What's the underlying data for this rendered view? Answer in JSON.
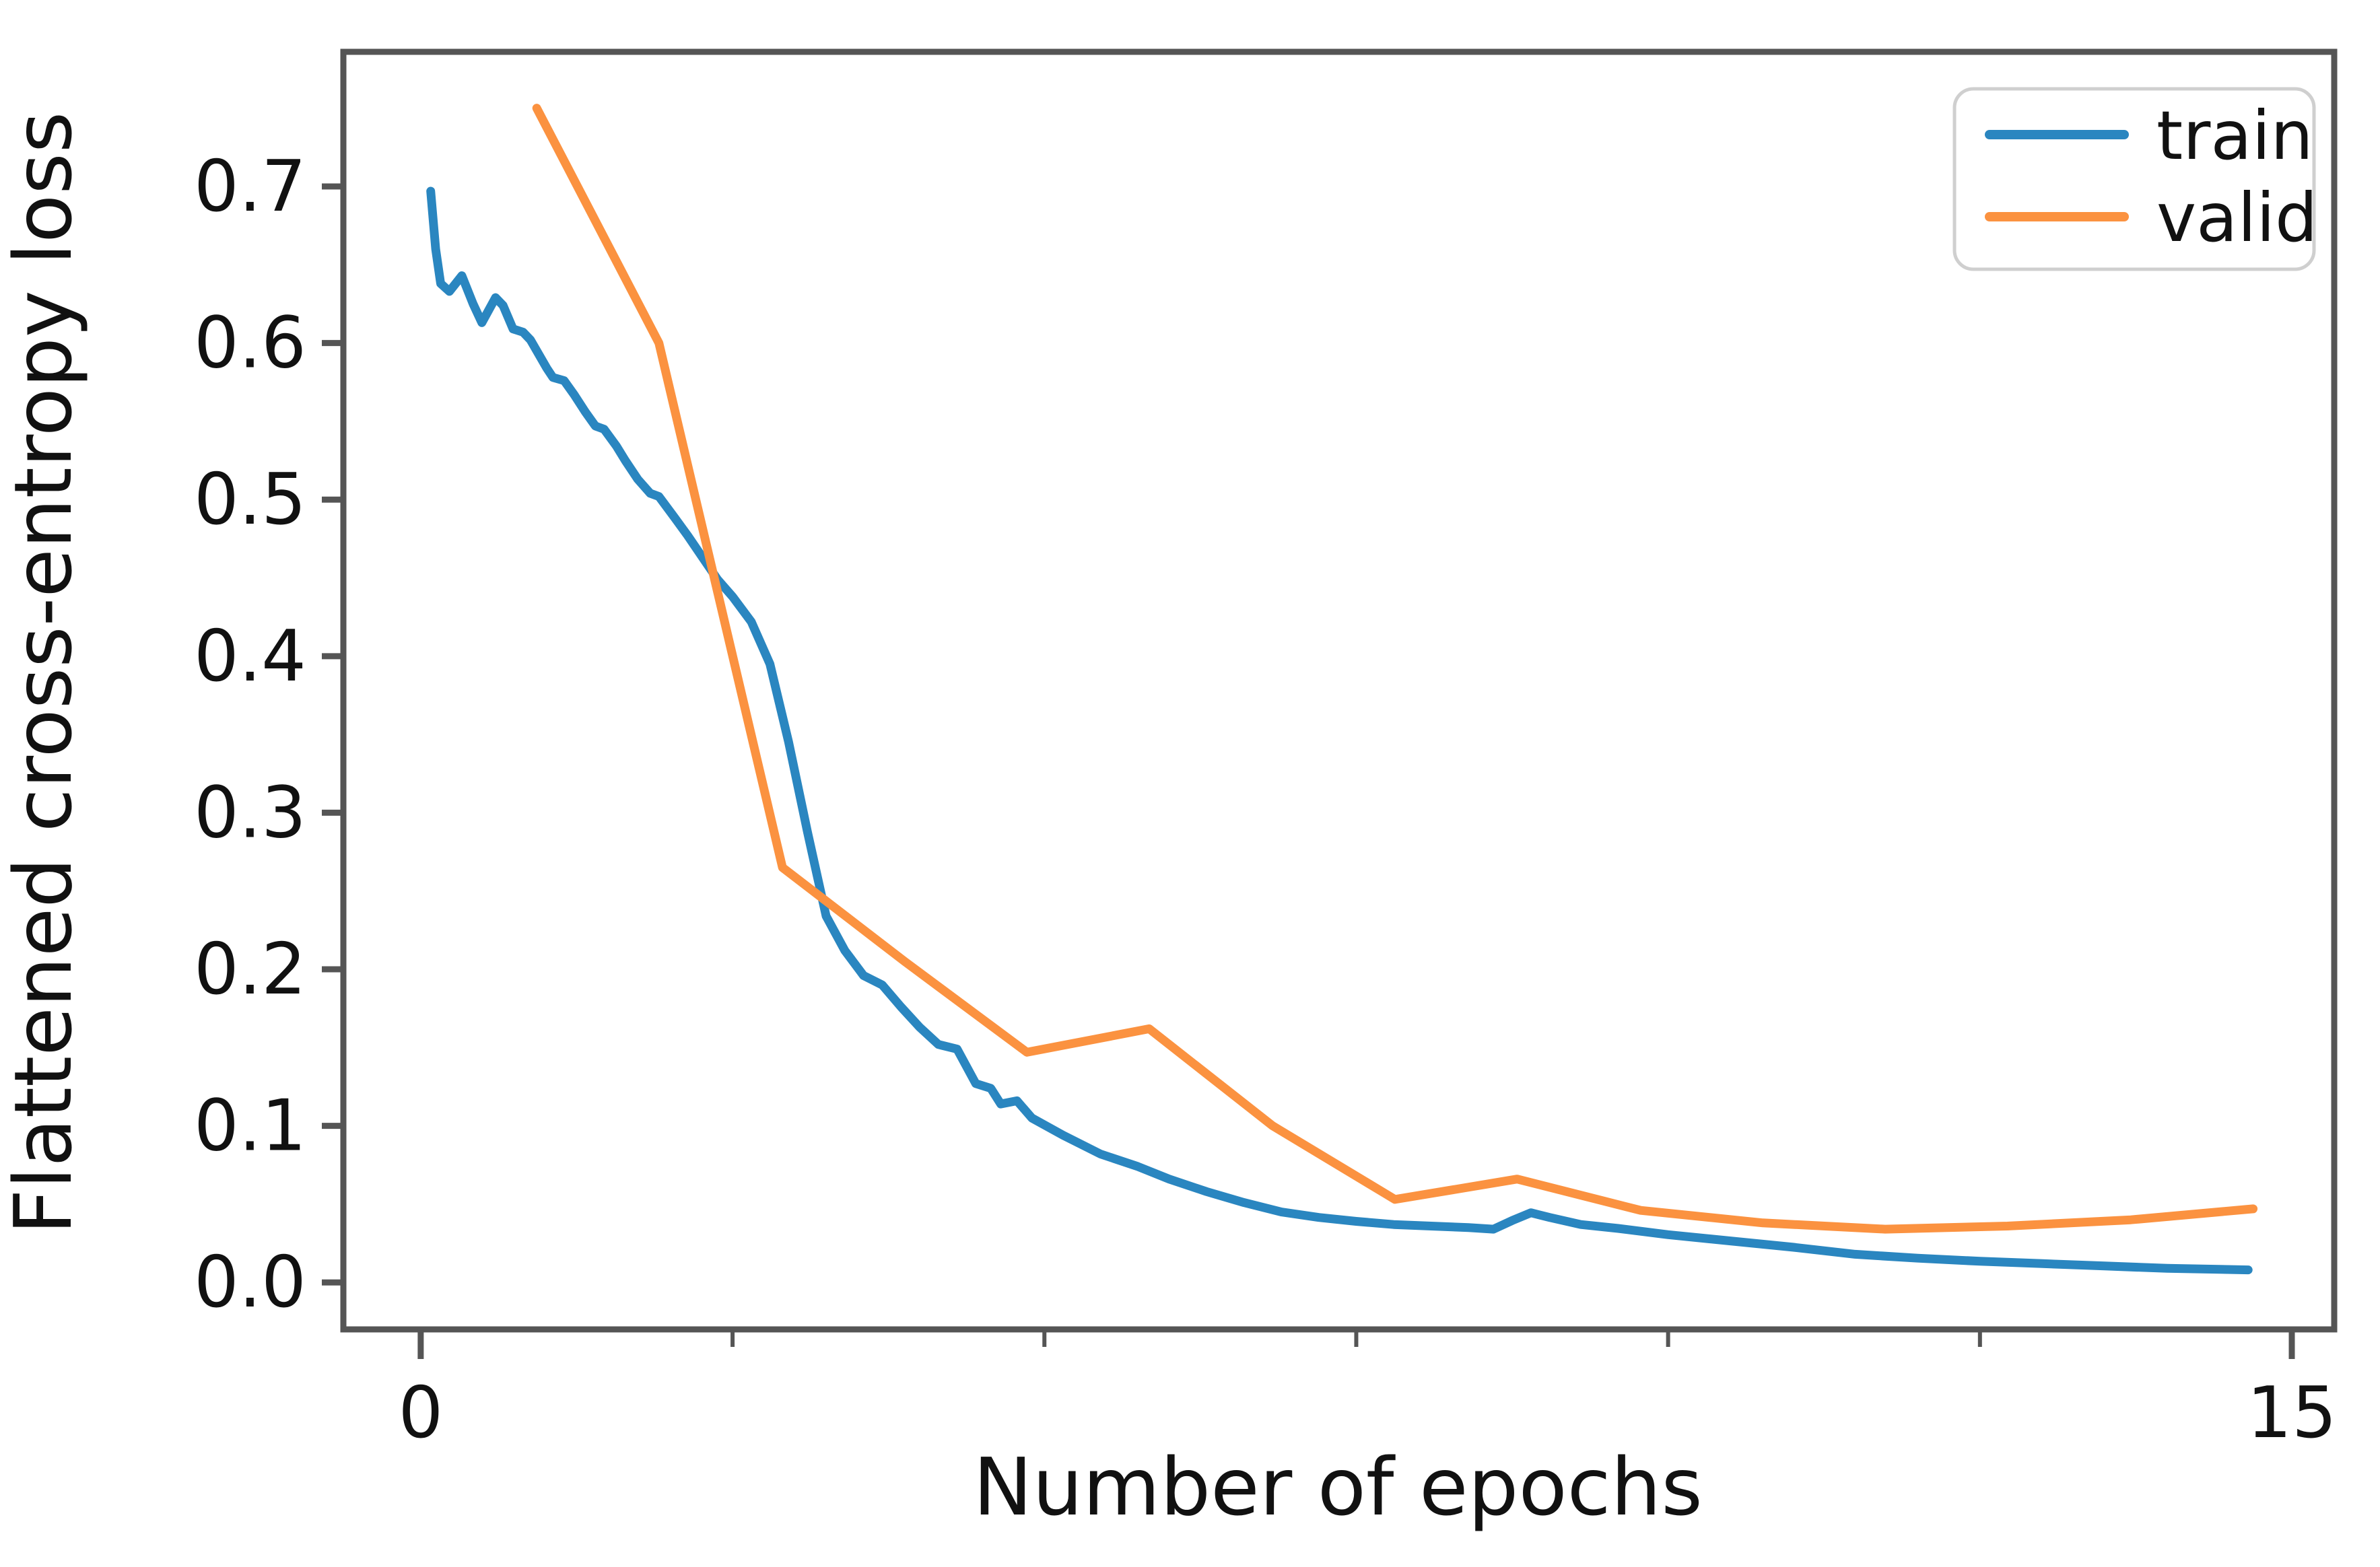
{
  "chart_data": {
    "type": "line",
    "title": "",
    "xlabel": "Number of epochs",
    "ylabel": "Flattened cross-entropy loss",
    "x_tick_values": [
      0,
      15
    ],
    "x_tick_labels": [
      "0",
      "15"
    ],
    "x_minor_tick_values": [
      2.5,
      5,
      7.5,
      10,
      12.5
    ],
    "y_tick_values": [
      0.0,
      0.1,
      0.2,
      0.3,
      0.4,
      0.5,
      0.6,
      0.7
    ],
    "y_tick_labels": [
      "0.0",
      "0.1",
      "0.2",
      "0.3",
      "0.4",
      "0.5",
      "0.6",
      "0.7"
    ],
    "xlim": [
      -0.62,
      15.34
    ],
    "ylim": [
      -0.03,
      0.786
    ],
    "grid": false,
    "legend": {
      "position": "upper right"
    },
    "colors": {
      "train": "#2a86c0",
      "valid": "#fb9240",
      "axis": "#555555",
      "text": "#111111",
      "legend_border": "#cfcfcf",
      "background": "#ffffff"
    },
    "series": [
      {
        "name": "train",
        "color_key": "train",
        "points": [
          [
            0.08,
            0.697
          ],
          [
            0.12,
            0.66
          ],
          [
            0.16,
            0.638
          ],
          [
            0.23,
            0.633
          ],
          [
            0.33,
            0.643
          ],
          [
            0.42,
            0.625
          ],
          [
            0.49,
            0.613
          ],
          [
            0.6,
            0.629
          ],
          [
            0.66,
            0.624
          ],
          [
            0.74,
            0.609
          ],
          [
            0.82,
            0.607
          ],
          [
            0.88,
            0.602
          ],
          [
            1.01,
            0.584
          ],
          [
            1.06,
            0.578
          ],
          [
            1.15,
            0.576
          ],
          [
            1.23,
            0.567
          ],
          [
            1.32,
            0.556
          ],
          [
            1.4,
            0.547
          ],
          [
            1.47,
            0.545
          ],
          [
            1.57,
            0.534
          ],
          [
            1.64,
            0.525
          ],
          [
            1.74,
            0.513
          ],
          [
            1.84,
            0.504
          ],
          [
            1.91,
            0.502
          ],
          [
            2.04,
            0.488
          ],
          [
            2.14,
            0.477
          ],
          [
            2.26,
            0.463
          ],
          [
            2.38,
            0.449
          ],
          [
            2.5,
            0.438
          ],
          [
            2.65,
            0.422
          ],
          [
            2.8,
            0.395
          ],
          [
            2.95,
            0.345
          ],
          [
            3.1,
            0.288
          ],
          [
            3.25,
            0.234
          ],
          [
            3.4,
            0.212
          ],
          [
            3.55,
            0.196
          ],
          [
            3.7,
            0.19
          ],
          [
            3.85,
            0.176
          ],
          [
            4.0,
            0.163
          ],
          [
            4.15,
            0.152
          ],
          [
            4.3,
            0.149
          ],
          [
            4.45,
            0.127
          ],
          [
            4.57,
            0.124
          ],
          [
            4.65,
            0.114
          ],
          [
            4.78,
            0.116
          ],
          [
            4.9,
            0.105
          ],
          [
            5.15,
            0.094
          ],
          [
            5.45,
            0.082
          ],
          [
            5.75,
            0.074
          ],
          [
            6.0,
            0.066
          ],
          [
            6.3,
            0.058
          ],
          [
            6.6,
            0.051
          ],
          [
            6.9,
            0.045
          ],
          [
            7.2,
            0.0415
          ],
          [
            7.5,
            0.039
          ],
          [
            7.8,
            0.037
          ],
          [
            8.1,
            0.036
          ],
          [
            8.4,
            0.035
          ],
          [
            8.6,
            0.034
          ],
          [
            8.75,
            0.0395
          ],
          [
            8.9,
            0.0445
          ],
          [
            9.05,
            0.0415
          ],
          [
            9.3,
            0.037
          ],
          [
            9.6,
            0.0345
          ],
          [
            10.0,
            0.0305
          ],
          [
            10.5,
            0.0265
          ],
          [
            11.0,
            0.0225
          ],
          [
            11.5,
            0.018
          ],
          [
            12.0,
            0.0155
          ],
          [
            12.5,
            0.0135
          ],
          [
            13.0,
            0.012
          ],
          [
            13.5,
            0.0105
          ],
          [
            14.0,
            0.009
          ],
          [
            14.65,
            0.008
          ]
        ]
      },
      {
        "name": "valid",
        "color_key": "valid",
        "points": [
          [
            0.93,
            0.75
          ],
          [
            1.91,
            0.6
          ],
          [
            2.9,
            0.265
          ],
          [
            3.88,
            0.205
          ],
          [
            4.86,
            0.147
          ],
          [
            5.84,
            0.162
          ],
          [
            6.83,
            0.1
          ],
          [
            7.81,
            0.053
          ],
          [
            8.79,
            0.066
          ],
          [
            9.78,
            0.046
          ],
          [
            10.76,
            0.038
          ],
          [
            11.74,
            0.034
          ],
          [
            12.72,
            0.036
          ],
          [
            13.71,
            0.04
          ],
          [
            14.69,
            0.047
          ]
        ]
      }
    ]
  }
}
